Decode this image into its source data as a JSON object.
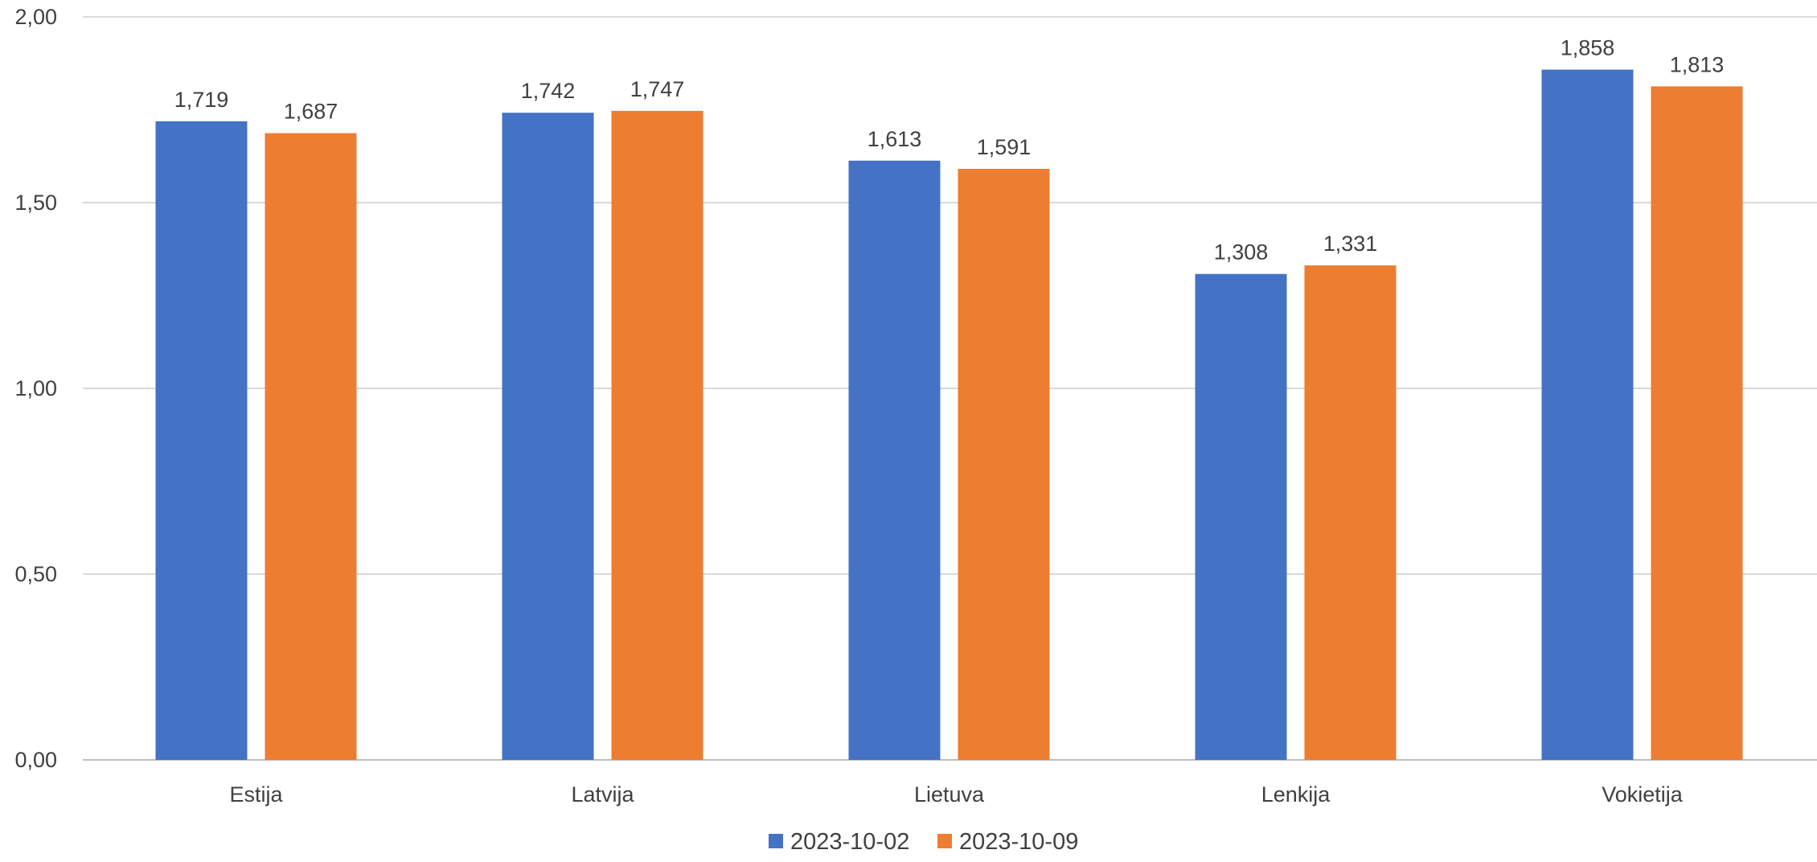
{
  "chart_data": {
    "type": "bar",
    "title": "",
    "xlabel": "",
    "ylabel": "",
    "categories": [
      "Estija",
      "Latvija",
      "Lietuva",
      "Lenkija",
      "Vokietija"
    ],
    "series": [
      {
        "name": "2023-10-02",
        "color": "#4472C4",
        "values": [
          1.719,
          1.742,
          1.613,
          1.308,
          1.858
        ],
        "labels": [
          "1,719",
          "1,742",
          "1,613",
          "1,308",
          "1,858"
        ]
      },
      {
        "name": "2023-10-09",
        "color": "#ED7D31",
        "values": [
          1.687,
          1.747,
          1.591,
          1.331,
          1.813
        ],
        "labels": [
          "1,687",
          "1,747",
          "1,591",
          "1,331",
          "1,813"
        ]
      }
    ],
    "ylim": [
      0,
      2
    ],
    "yticks": [
      0,
      0.5,
      1,
      1.5,
      2
    ],
    "ytick_labels": [
      "0,00",
      "0,50",
      "1,00",
      "1,50",
      "2,00"
    ],
    "grid": true,
    "legend_position": "bottom"
  }
}
